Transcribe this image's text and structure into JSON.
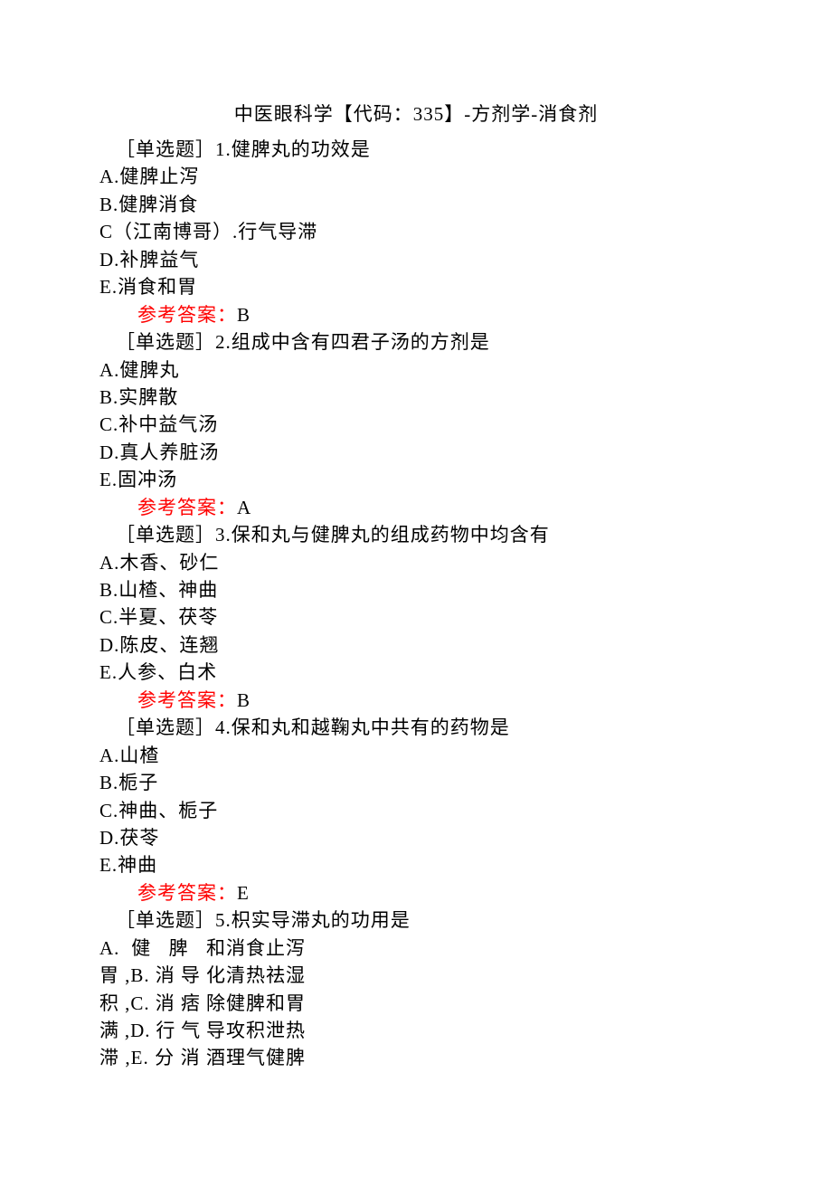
{
  "title": "中医眼科学【代码：335】-方剂学-消食剂",
  "questions": [
    {
      "label": "［单选题］1.健脾丸的功效是",
      "options": [
        "A.健脾止泻",
        "B.健脾消食",
        "C（江南博哥）.行气导滞",
        "D.补脾益气",
        "E.消食和胃"
      ],
      "answerLabel": "参考答案：",
      "answerValue": "B"
    },
    {
      "label": "［单选题］2.组成中含有四君子汤的方剂是",
      "options": [
        "A.健脾丸",
        "B.实脾散",
        "C.补中益气汤",
        "D.真人养脏汤",
        "E.固冲汤"
      ],
      "answerLabel": "参考答案：",
      "answerValue": "A"
    },
    {
      "label": "［单选题］3.保和丸与健脾丸的组成药物中均含有",
      "options": [
        "A.木香、砂仁",
        "B.山楂、神曲",
        "C.半夏、茯苓",
        "D.陈皮、连翘",
        "E.人参、白术"
      ],
      "answerLabel": "参考答案：",
      "answerValue": "B"
    },
    {
      "label": "［单选题］4.保和丸和越鞠丸中共有的药物是",
      "options": [
        "A.山楂",
        "B.栀子",
        "C.神曲、栀子",
        "D.茯苓",
        "E.神曲"
      ],
      "answerLabel": "参考答案：",
      "answerValue": "E"
    },
    {
      "label": "［单选题］5.枳实导滞丸的功用是",
      "q5col1": [
        "A. 健 脾 和",
        "胃,B.消导化",
        "积,C.消痞除",
        "满,D.行气导",
        "滞,E.分消酒"
      ],
      "q5col2": [
        "消食止泻",
        "清热祛湿",
        "健脾和胃",
        "攻积泄热",
        "理气健脾"
      ]
    }
  ]
}
